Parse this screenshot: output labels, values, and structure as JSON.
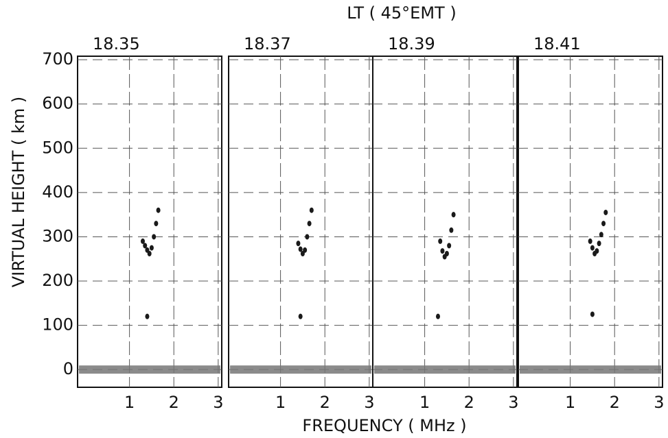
{
  "figure": {
    "title": "LT ( 45°EMT )",
    "xlabel": "FREQUENCY    ( MHz )",
    "ylabel": "VIRTUAL HEIGHT ( km )"
  },
  "chart_data": [
    {
      "type": "scatter",
      "title": "18.35",
      "xlim": [
        -0.17,
        3.08
      ],
      "ylim": [
        -40,
        708
      ],
      "xticks": [
        1,
        2,
        3
      ],
      "yticks": [
        0,
        100,
        200,
        300,
        400,
        500,
        600,
        700
      ],
      "grid": true,
      "series": [
        {
          "color": "#1a1a1a",
          "x": [
            1.3,
            1.35,
            1.4,
            1.45,
            1.5,
            1.55,
            1.6,
            1.65,
            1.4
          ],
          "values": [
            290,
            280,
            270,
            262,
            275,
            300,
            330,
            360,
            120
          ]
        }
      ]
    },
    {
      "type": "scatter",
      "title": "18.37",
      "xlim": [
        -0.17,
        3.08
      ],
      "ylim": [
        -40,
        708
      ],
      "xticks": [
        1,
        2,
        3
      ],
      "grid": true,
      "series": [
        {
          "color": "#1a1a1a",
          "x": [
            1.4,
            1.45,
            1.5,
            1.55,
            1.6,
            1.65,
            1.7,
            1.45
          ],
          "values": [
            285,
            272,
            262,
            270,
            300,
            330,
            360,
            120
          ]
        }
      ]
    },
    {
      "type": "scatter",
      "title": "18.39",
      "xlim": [
        -0.17,
        3.08
      ],
      "ylim": [
        -40,
        708
      ],
      "xticks": [
        1,
        2,
        3
      ],
      "grid": true,
      "series": [
        {
          "color": "#1a1a1a",
          "x": [
            1.35,
            1.4,
            1.45,
            1.5,
            1.55,
            1.6,
            1.65,
            1.3
          ],
          "values": [
            290,
            268,
            255,
            262,
            280,
            315,
            350,
            120
          ]
        }
      ]
    },
    {
      "type": "scatter",
      "title": "18.41",
      "xlim": [
        -0.17,
        3.08
      ],
      "ylim": [
        -40,
        708
      ],
      "xticks": [
        1,
        2,
        3
      ],
      "grid": true,
      "series": [
        {
          "color": "#1a1a1a",
          "x": [
            1.45,
            1.5,
            1.55,
            1.6,
            1.65,
            1.7,
            1.75,
            1.8,
            1.5
          ],
          "values": [
            290,
            275,
            262,
            268,
            285,
            305,
            330,
            355,
            125
          ]
        }
      ]
    }
  ]
}
